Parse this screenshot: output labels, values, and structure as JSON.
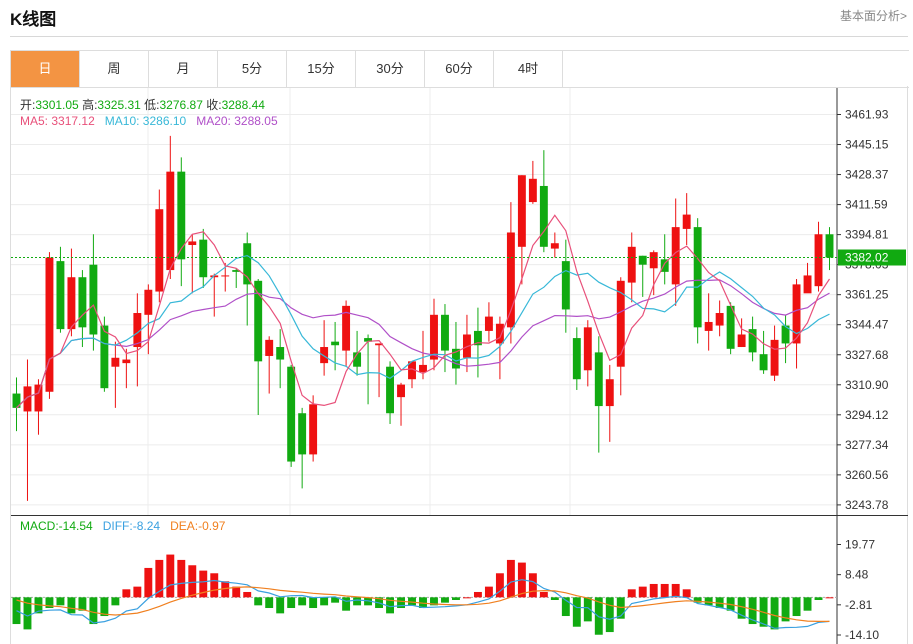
{
  "header": {
    "title": "K线图",
    "link": "基本面分析>"
  },
  "tabs": [
    {
      "label": "日",
      "active": true
    },
    {
      "label": "周",
      "active": false
    },
    {
      "label": "月",
      "active": false
    },
    {
      "label": "5分",
      "active": false
    },
    {
      "label": "15分",
      "active": false
    },
    {
      "label": "30分",
      "active": false
    },
    {
      "label": "60分",
      "active": false
    },
    {
      "label": "4时",
      "active": false
    }
  ],
  "info": {
    "open_label": "开:",
    "open": "3301.05",
    "high_label": "高:",
    "high": "3325.31",
    "low_label": "低:",
    "low": "3276.87",
    "close_label": "收:",
    "close": "3288.44",
    "ma5_label": "MA5:",
    "ma5": "3317.12",
    "ma10_label": "MA10:",
    "ma10": "3286.10",
    "ma20_label": "MA20:",
    "ma20": "3288.05",
    "macd_label": "MACD:",
    "macd": "-14.54",
    "diff_label": "DIFF:",
    "diff": "-8.24",
    "dea_label": "DEA:",
    "dea": "-0.97"
  },
  "colors": {
    "up": "#ee1111",
    "down": "#11aa11",
    "ma5": "#e8507a",
    "ma10": "#38b8d8",
    "ma20": "#b050c8",
    "diff": "#3aa0e0",
    "dea": "#f08020"
  },
  "chart_data": [
    {
      "type": "candlestick",
      "price_ticks": [
        "3461.93",
        "3445.15",
        "3428.37",
        "3411.59",
        "3394.81",
        "3378.03",
        "3361.25",
        "3344.47",
        "3327.68",
        "3310.90",
        "3294.12",
        "3277.34",
        "3260.56",
        "3243.78"
      ],
      "ylim": [
        3243.78,
        3461.93
      ],
      "last_price": "3382.02",
      "candles": [
        [
          3306,
          3298,
          3315,
          3285
        ],
        [
          3296,
          3310,
          3325,
          3246
        ],
        [
          3296,
          3311,
          3314,
          3283
        ],
        [
          3307,
          3382,
          3385,
          3303
        ],
        [
          3380,
          3342,
          3388,
          3340
        ],
        [
          3342,
          3371,
          3387,
          3338
        ],
        [
          3371,
          3343,
          3375,
          3332
        ],
        [
          3378,
          3339,
          3395,
          3330
        ],
        [
          3344,
          3309,
          3349,
          3307
        ],
        [
          3321,
          3326,
          3335,
          3298
        ],
        [
          3323,
          3325,
          3331,
          3309
        ],
        [
          3332,
          3351,
          3362,
          3310
        ],
        [
          3350,
          3364,
          3367,
          3328
        ],
        [
          3363,
          3409,
          3420,
          3357
        ],
        [
          3375,
          3430,
          3450,
          3370
        ],
        [
          3430,
          3381,
          3438,
          3366
        ],
        [
          3389,
          3391,
          3395,
          3362
        ],
        [
          3392,
          3371,
          3398,
          3365
        ],
        [
          3371,
          3372,
          3373,
          3349
        ],
        [
          3372,
          3372,
          3379,
          3363
        ],
        [
          3375,
          3374,
          3376,
          3365
        ],
        [
          3390,
          3367,
          3396,
          3344
        ],
        [
          3369,
          3324,
          3370,
          3294
        ],
        [
          3327,
          3336,
          3338,
          3306
        ],
        [
          3332,
          3325,
          3342,
          3309
        ],
        [
          3321,
          3268,
          3322,
          3265
        ],
        [
          3295,
          3272,
          3298,
          3253
        ],
        [
          3272,
          3300,
          3305,
          3268
        ],
        [
          3323,
          3332,
          3347,
          3316
        ],
        [
          3335,
          3333,
          3346,
          3319
        ],
        [
          3330,
          3355,
          3358,
          3321
        ],
        [
          3329,
          3321,
          3341,
          3316
        ],
        [
          3337,
          3335,
          3339,
          3300
        ],
        [
          3333,
          3334,
          3334,
          3304
        ],
        [
          3321,
          3295,
          3324,
          3289
        ],
        [
          3304,
          3311,
          3312,
          3288
        ],
        [
          3314,
          3324,
          3324,
          3309
        ],
        [
          3318,
          3322,
          3341,
          3314
        ],
        [
          3325,
          3350,
          3359,
          3319
        ],
        [
          3350,
          3330,
          3356,
          3318
        ],
        [
          3331,
          3320,
          3346,
          3311
        ],
        [
          3326,
          3339,
          3350,
          3318
        ],
        [
          3341,
          3333,
          3354,
          3315
        ],
        [
          3341,
          3349,
          3357,
          3335
        ],
        [
          3334,
          3345,
          3349,
          3314
        ],
        [
          3343,
          3396,
          3413,
          3334
        ],
        [
          3388,
          3428,
          3428,
          3367
        ],
        [
          3413,
          3426,
          3436,
          3412
        ],
        [
          3422,
          3388,
          3442,
          3385
        ],
        [
          3387,
          3390,
          3396,
          3382
        ],
        [
          3380,
          3353,
          3392,
          3340
        ],
        [
          3337,
          3314,
          3343,
          3308
        ],
        [
          3319,
          3343,
          3347,
          3310
        ],
        [
          3329,
          3299,
          3338,
          3273
        ],
        [
          3299,
          3314,
          3322,
          3279
        ],
        [
          3321,
          3369,
          3371,
          3305
        ],
        [
          3368,
          3388,
          3396,
          3357
        ],
        [
          3383,
          3378,
          3383,
          3360
        ],
        [
          3376,
          3385,
          3386,
          3361
        ],
        [
          3381,
          3374,
          3395,
          3367
        ],
        [
          3367,
          3399,
          3415,
          3355
        ],
        [
          3398,
          3406,
          3418,
          3389
        ],
        [
          3399,
          3343,
          3404,
          3334
        ],
        [
          3341,
          3346,
          3362,
          3330
        ],
        [
          3344,
          3351,
          3358,
          3338
        ],
        [
          3355,
          3331,
          3357,
          3328
        ],
        [
          3332,
          3339,
          3348,
          3332
        ],
        [
          3342,
          3329,
          3349,
          3324
        ],
        [
          3328,
          3319,
          3341,
          3317
        ],
        [
          3316,
          3336,
          3344,
          3313
        ],
        [
          3344,
          3334,
          3350,
          3323
        ],
        [
          3334,
          3367,
          3370,
          3320
        ],
        [
          3362,
          3372,
          3379,
          3365
        ],
        [
          3366,
          3395,
          3402,
          3363
        ],
        [
          3395,
          3382,
          3399,
          3375
        ]
      ]
    },
    {
      "type": "bar",
      "name": "MACD",
      "ticks": [
        "19.77",
        "8.48",
        "-2.81",
        "-14.10"
      ],
      "ylim": [
        -14.1,
        19.77
      ],
      "values": [
        -10,
        -12,
        -6,
        -4,
        -3,
        -6,
        -5,
        -10,
        -7,
        -3,
        3,
        4,
        11,
        14,
        16,
        14,
        12,
        10,
        9,
        6,
        4,
        2,
        -3,
        -4,
        -6,
        -4,
        -3,
        -4,
        -3,
        -2,
        -5,
        -3,
        -3,
        -4,
        -6,
        -4,
        -3,
        -4,
        -3,
        -2,
        -1,
        0,
        2,
        4,
        9,
        14,
        13,
        9,
        2,
        -1,
        -7,
        -11,
        -9,
        -14,
        -13,
        -8,
        3,
        4,
        5,
        5,
        5,
        3,
        -2,
        -3,
        -4,
        -5,
        -8,
        -10,
        -11,
        -12,
        -9,
        -7,
        -5,
        -1,
        0
      ]
    }
  ]
}
